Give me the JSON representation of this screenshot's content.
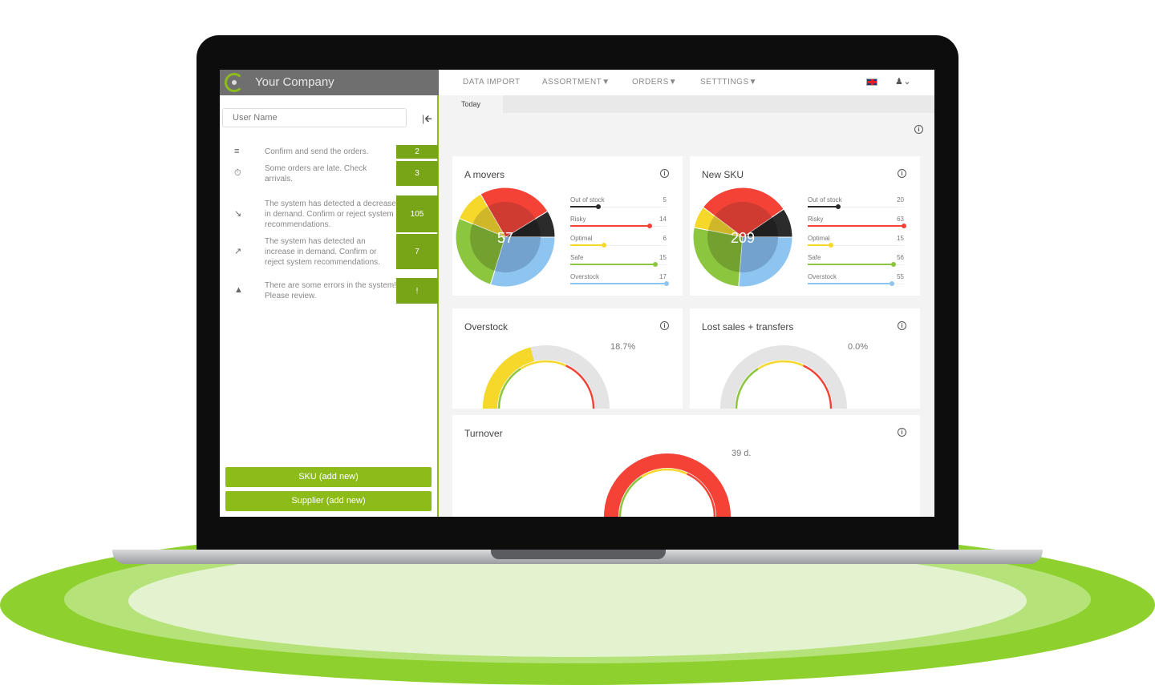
{
  "sidebar": {
    "company": "Your Company",
    "user_placeholder": "User Name",
    "collapse_icon": "collapse-left-icon",
    "tasks": [
      {
        "icon": "list-icon",
        "text": "Confirm and send the orders.",
        "count": "2"
      },
      {
        "icon": "timer-icon",
        "text": "Some orders are late. Check arrivals.",
        "count": "3"
      },
      {
        "icon": "trend-down-icon",
        "text": "The system has detected a decrease in demand. Confirm or reject system recommendations.",
        "count": "105"
      },
      {
        "icon": "trend-up-icon",
        "text": "The system has detected an increase in demand. Confirm or reject system recommendations.",
        "count": "7"
      },
      {
        "icon": "warning-icon",
        "text": "There are some errors in the system! Please review.",
        "count": "!"
      }
    ],
    "buttons": {
      "sku": "SKU (add new)",
      "supplier": "Supplier (add new)"
    }
  },
  "nav": {
    "items": [
      "DATA IMPORT",
      "ASSORTMENT▼",
      "ORDERS▼",
      "SETTTINGS▼"
    ],
    "flag": "uk-flag-icon",
    "user": "user-icon"
  },
  "tabs": {
    "today": "Today"
  },
  "colors": {
    "accent": "#8cbb1a",
    "out_of_stock": "#2b2b2b",
    "risky": "#f44336",
    "optimal": "#f5d82a",
    "safe": "#8cc63f",
    "overstock": "#8ec5f0"
  },
  "chart_data": [
    {
      "type": "pie",
      "title": "A movers",
      "total": "57",
      "categories": [
        "Out of stock",
        "Risky",
        "Optimal",
        "Safe",
        "Overstock"
      ],
      "values": [
        5,
        14,
        6,
        15,
        17
      ]
    },
    {
      "type": "pie",
      "title": "New SKU",
      "total": "209",
      "categories": [
        "Out of stock",
        "Risky",
        "Optimal",
        "Safe",
        "Overstock"
      ],
      "values": [
        20,
        63,
        15,
        56,
        55
      ]
    },
    {
      "type": "gauge",
      "title": "Overstock",
      "label": "18.7%",
      "fill_fraction": 0.42,
      "fill_color": "#f5d82a"
    },
    {
      "type": "gauge",
      "title": "Lost sales + transfers",
      "label": "0.0%",
      "fill_fraction": 0,
      "fill_color": "#f5d82a"
    },
    {
      "type": "gauge",
      "title": "Turnover",
      "label": "39 d.",
      "fill_fraction": 1,
      "fill_color": "#f44336"
    }
  ]
}
